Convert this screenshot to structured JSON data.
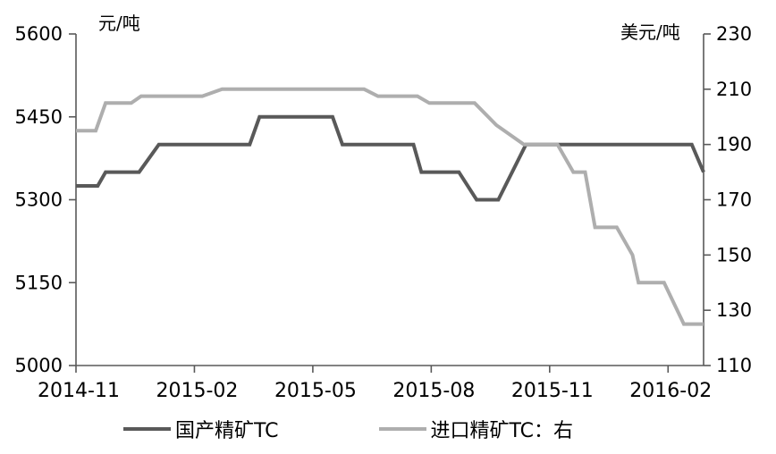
{
  "chart_data": {
    "type": "line",
    "title": "",
    "x_axis": {
      "min": 0,
      "max": 15.9,
      "unit": "months since 2014-11",
      "tick_positions": [
        0,
        3,
        6,
        9,
        12,
        15
      ],
      "tick_labels": [
        "2014-11",
        "2015-02",
        "2015-05",
        "2015-08",
        "2015-11",
        "2016-02"
      ]
    },
    "y_axis_left": {
      "unit_label": "元/吨",
      "min": 5000,
      "max": 5600,
      "ticks": [
        5600,
        5450,
        5300,
        5150,
        5000
      ]
    },
    "y_axis_right": {
      "unit_label": "美元/吨",
      "min": 110,
      "max": 230,
      "ticks": [
        230,
        210,
        190,
        170,
        150,
        130,
        110
      ]
    },
    "grid": false,
    "legend_position": "bottom",
    "series": [
      {
        "name": "国产精矿TC",
        "axis": "left",
        "color": "#595959",
        "points": [
          [
            0,
            5325
          ],
          [
            0.55,
            5325
          ],
          [
            0.75,
            5350
          ],
          [
            1.6,
            5350
          ],
          [
            2.1,
            5400
          ],
          [
            4.4,
            5400
          ],
          [
            4.65,
            5450
          ],
          [
            6.5,
            5450
          ],
          [
            6.75,
            5400
          ],
          [
            8.55,
            5400
          ],
          [
            8.75,
            5350
          ],
          [
            9.7,
            5350
          ],
          [
            10.15,
            5300
          ],
          [
            10.7,
            5300
          ],
          [
            11.4,
            5400
          ],
          [
            15.6,
            5400
          ],
          [
            15.9,
            5350
          ]
        ]
      },
      {
        "name": "进口精矿TC：右",
        "axis": "right",
        "color": "#aeaeae",
        "points": [
          [
            0,
            195
          ],
          [
            0.5,
            195
          ],
          [
            0.75,
            205
          ],
          [
            1.4,
            205
          ],
          [
            1.65,
            207.5
          ],
          [
            3.2,
            207.5
          ],
          [
            3.7,
            210
          ],
          [
            7.3,
            210
          ],
          [
            7.65,
            207.5
          ],
          [
            8.65,
            207.5
          ],
          [
            8.95,
            205
          ],
          [
            10.1,
            205
          ],
          [
            10.65,
            197
          ],
          [
            11.35,
            190
          ],
          [
            12.2,
            190
          ],
          [
            12.6,
            180
          ],
          [
            12.9,
            180
          ],
          [
            13.15,
            160
          ],
          [
            13.7,
            160
          ],
          [
            14.1,
            150
          ],
          [
            14.25,
            140
          ],
          [
            14.9,
            140
          ],
          [
            15.4,
            125
          ],
          [
            15.9,
            125
          ]
        ]
      }
    ]
  },
  "style": {
    "axis_color": "#595959",
    "text_color": "#000000",
    "background": "#ffffff",
    "line_width": 4
  }
}
